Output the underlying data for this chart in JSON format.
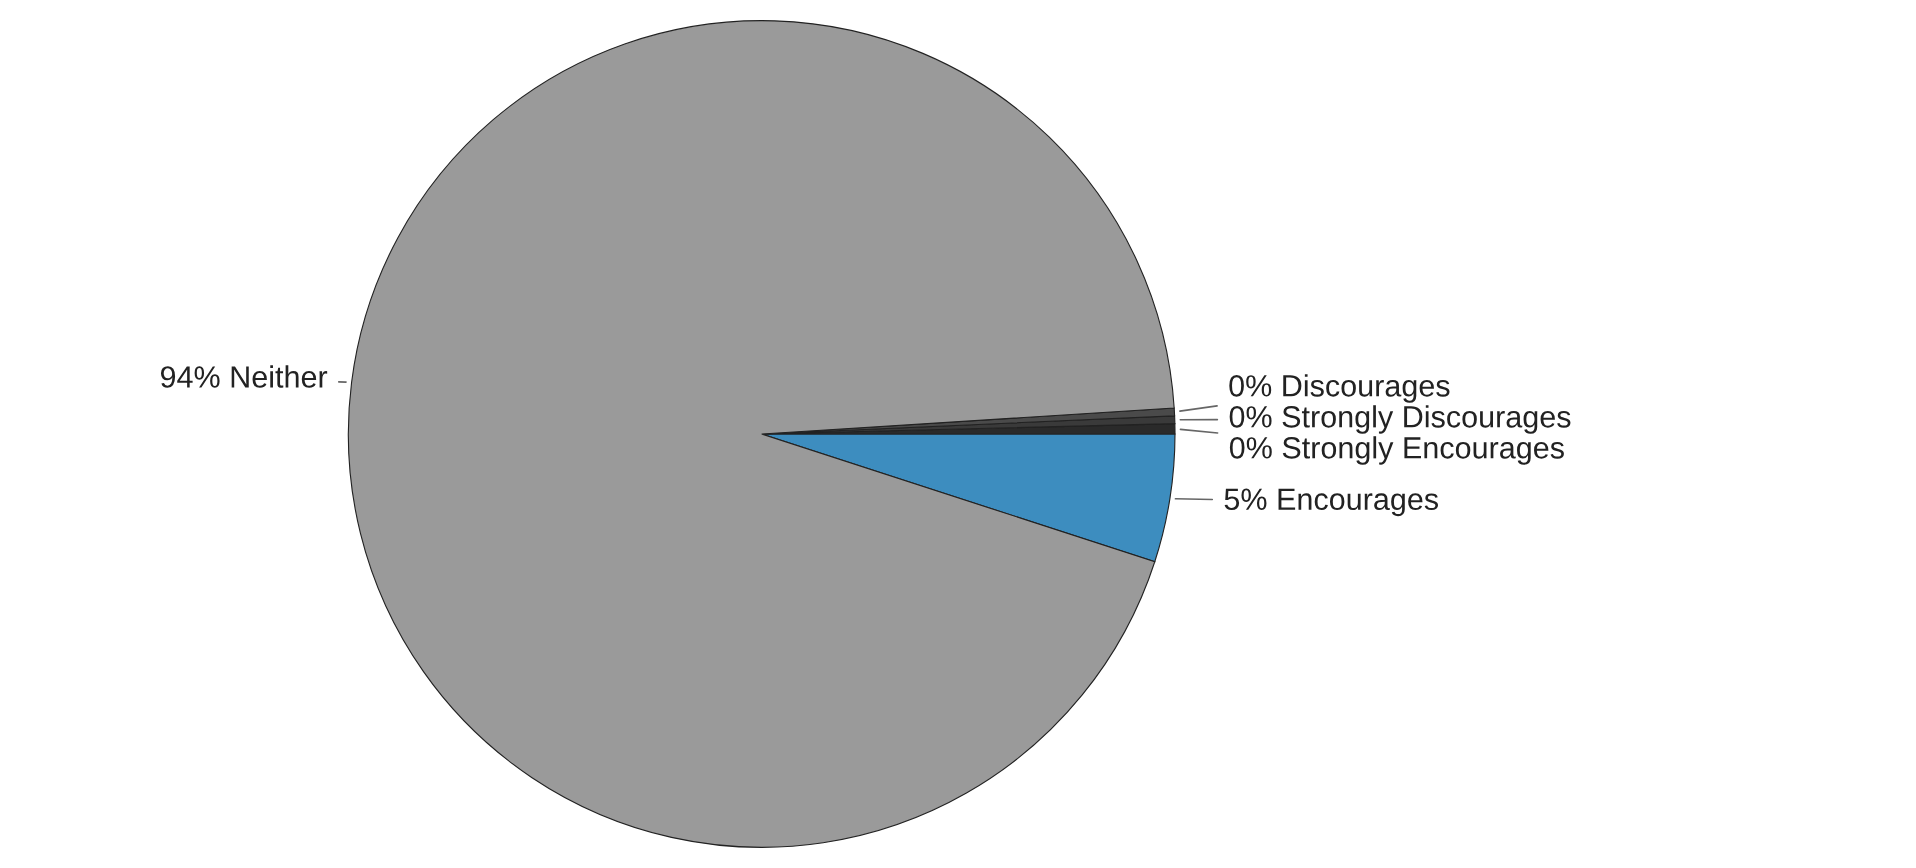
{
  "chart_data": {
    "type": "pie",
    "categories": [
      "Encourages",
      "Strongly Encourages",
      "Strongly Discourages",
      "Discourages",
      "Neither"
    ],
    "values": [
      5,
      0.4,
      0.3,
      0.3,
      94
    ],
    "value_labels": [
      "5%",
      "0%",
      "0%",
      "0%",
      "94%"
    ],
    "colors": [
      "#3d8dbf",
      "#2a2a2a",
      "#3a3a3a",
      "#4a4a4a",
      "#9a9a9a"
    ]
  }
}
